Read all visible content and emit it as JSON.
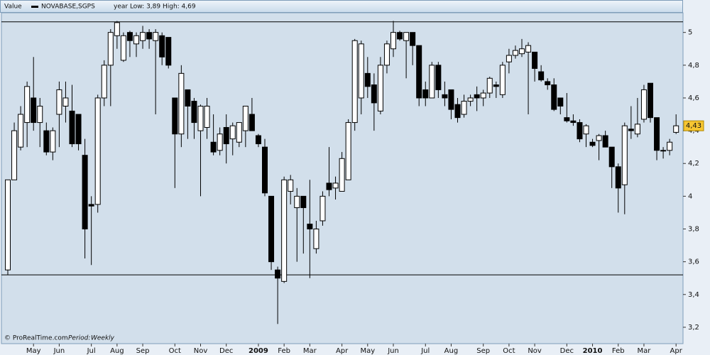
{
  "chart_data": {
    "type": "candlestick",
    "header": "Value",
    "legend_text": "year Low: 3,89 High: 4,69",
    "footer": "© ProRealTime.com",
    "period_label": "Period:",
    "period": "Weekly",
    "categories": [
      null,
      null,
      null,
      null,
      "May",
      null,
      null,
      null,
      "Jun",
      null,
      null,
      null,
      null,
      "Jul",
      null,
      null,
      null,
      "Aug",
      null,
      null,
      null,
      "Sep",
      null,
      null,
      null,
      null,
      "Oct",
      null,
      null,
      null,
      "Nov",
      null,
      null,
      null,
      "Dec",
      null,
      null,
      null,
      null,
      "2009",
      null,
      null,
      null,
      "Feb",
      null,
      null,
      null,
      "Mar",
      null,
      null,
      null,
      null,
      "Apr",
      null,
      null,
      null,
      "May",
      null,
      null,
      null,
      "Jun",
      null,
      null,
      null,
      null,
      "Jul",
      null,
      null,
      null,
      "Aug",
      null,
      null,
      null,
      null,
      "Sep",
      null,
      null,
      null,
      "Oct",
      null,
      null,
      null,
      "Nov",
      null,
      null,
      null,
      null,
      "Dec",
      null,
      null,
      null,
      "2010",
      null,
      null,
      null,
      "Feb",
      null,
      null,
      null,
      "Mar",
      null,
      null,
      null,
      null,
      "Apr"
    ],
    "series": [
      {
        "name": "NOVABASE,SGPS",
        "up_color": "#ffffff",
        "down_color": "#000000",
        "open": [
          3.55,
          4.1,
          4.3,
          4.45,
          4.6,
          4.45,
          4.4,
          4.27,
          4.5,
          4.55,
          4.52,
          4.5,
          4.25,
          3.95,
          3.95,
          4.6,
          4.8,
          4.98,
          4.83,
          5.0,
          4.93,
          4.95,
          5.0,
          4.95,
          4.98,
          4.97,
          4.6,
          4.38,
          4.65,
          4.58,
          4.4,
          4.42,
          4.33,
          4.28,
          4.42,
          4.35,
          4.33,
          4.4,
          4.5,
          4.37,
          4.3,
          4.0,
          3.55,
          3.48,
          4.03,
          3.93,
          4.0,
          3.83,
          3.68,
          3.85,
          4.08,
          4.05,
          4.03,
          4.1,
          4.45,
          4.6,
          4.75,
          4.68,
          4.52,
          4.8,
          4.9,
          5.0,
          4.95,
          5.0,
          4.92,
          4.65,
          4.6,
          4.8,
          4.62,
          4.65,
          4.56,
          4.5,
          4.58,
          4.62,
          4.6,
          4.63,
          4.68,
          4.62,
          4.82,
          4.86,
          4.87,
          4.88,
          4.88,
          4.76,
          4.7,
          4.68,
          4.6,
          4.48,
          4.46,
          4.45,
          4.38,
          4.33,
          4.34,
          4.37,
          4.3,
          4.18,
          4.07,
          4.41,
          4.38,
          4.47,
          4.69,
          4.48,
          4.28,
          4.28,
          4.39
        ],
        "high": [
          4.1,
          4.45,
          4.55,
          4.7,
          4.85,
          4.6,
          4.45,
          4.42,
          4.7,
          4.7,
          4.68,
          4.5,
          4.35,
          4.0,
          4.62,
          4.83,
          5.02,
          5.07,
          5.0,
          5.01,
          5.0,
          5.04,
          5.02,
          5.02,
          5.0,
          4.97,
          4.6,
          4.8,
          4.65,
          4.6,
          4.56,
          4.6,
          4.5,
          4.42,
          4.5,
          4.45,
          4.45,
          4.55,
          4.6,
          4.38,
          4.35,
          4.0,
          3.57,
          4.12,
          4.13,
          4.05,
          4.0,
          4.1,
          3.85,
          4.03,
          4.3,
          4.12,
          4.27,
          4.47,
          4.96,
          4.95,
          4.85,
          4.75,
          4.85,
          4.95,
          5.07,
          5.01,
          5.0,
          5.0,
          4.92,
          4.7,
          4.82,
          4.82,
          4.7,
          4.65,
          4.6,
          4.62,
          4.62,
          4.67,
          4.65,
          4.73,
          4.7,
          4.82,
          4.9,
          4.92,
          4.96,
          4.94,
          4.88,
          4.8,
          4.72,
          4.72,
          4.6,
          4.63,
          4.5,
          4.47,
          4.44,
          4.35,
          4.38,
          4.4,
          4.3,
          4.2,
          4.45,
          4.55,
          4.6,
          4.68,
          4.69,
          4.48,
          4.3,
          4.35,
          4.5
        ],
        "low": [
          3.52,
          4.1,
          4.28,
          4.3,
          4.4,
          4.3,
          4.25,
          4.22,
          4.3,
          4.45,
          4.3,
          4.28,
          3.62,
          3.58,
          3.9,
          4.55,
          4.55,
          4.9,
          4.82,
          4.85,
          4.85,
          4.9,
          4.9,
          4.5,
          4.8,
          4.78,
          4.05,
          4.3,
          4.35,
          4.35,
          4.0,
          4.35,
          4.25,
          4.25,
          4.2,
          4.25,
          4.3,
          4.3,
          4.4,
          4.3,
          4.0,
          3.55,
          3.22,
          3.47,
          3.95,
          3.6,
          3.65,
          3.5,
          3.65,
          3.82,
          4.0,
          3.98,
          4.03,
          4.1,
          4.4,
          4.5,
          4.6,
          4.4,
          4.5,
          4.75,
          4.85,
          4.95,
          4.72,
          4.8,
          4.55,
          4.55,
          4.6,
          4.6,
          4.55,
          4.47,
          4.45,
          4.48,
          4.55,
          4.52,
          4.55,
          4.6,
          4.6,
          4.6,
          4.75,
          4.84,
          4.85,
          4.5,
          4.7,
          4.7,
          4.65,
          4.52,
          4.5,
          4.45,
          4.43,
          4.33,
          4.3,
          4.3,
          4.22,
          4.3,
          4.05,
          3.9,
          3.89,
          4.35,
          4.36,
          4.45,
          4.45,
          4.22,
          4.23,
          4.25,
          4.38
        ],
        "close": [
          4.1,
          4.4,
          4.5,
          4.67,
          4.45,
          4.55,
          4.27,
          4.4,
          4.65,
          4.6,
          4.32,
          4.32,
          3.8,
          3.94,
          4.6,
          4.8,
          5.0,
          5.06,
          4.98,
          4.95,
          4.98,
          5.0,
          4.96,
          5.0,
          4.85,
          4.8,
          4.38,
          4.75,
          4.55,
          4.45,
          4.55,
          4.55,
          4.27,
          4.38,
          4.32,
          4.43,
          4.45,
          4.55,
          4.4,
          4.32,
          4.02,
          3.6,
          3.5,
          4.1,
          4.1,
          4.0,
          3.93,
          3.8,
          3.8,
          4.0,
          4.04,
          4.08,
          4.23,
          4.45,
          4.95,
          4.93,
          4.67,
          4.57,
          4.8,
          4.93,
          5.0,
          4.96,
          5.0,
          4.92,
          4.6,
          4.6,
          4.8,
          4.65,
          4.6,
          4.53,
          4.48,
          4.58,
          4.6,
          4.6,
          4.63,
          4.72,
          4.67,
          4.8,
          4.86,
          4.89,
          4.9,
          4.92,
          4.78,
          4.71,
          4.68,
          4.53,
          4.55,
          4.46,
          4.45,
          4.35,
          4.43,
          4.31,
          4.37,
          4.3,
          4.18,
          4.05,
          4.43,
          4.4,
          4.44,
          4.65,
          4.48,
          4.28,
          4.28,
          4.33,
          4.43
        ]
      }
    ],
    "last_price": {
      "value": 4.43,
      "label": "4,43"
    },
    "hlines": [
      5.065,
      3.52
    ],
    "ylim": [
      3.1,
      5.12
    ],
    "yticks": [
      {
        "value": 3.2,
        "label": "3,2"
      },
      {
        "value": 3.4,
        "label": "3,4"
      },
      {
        "value": 3.6,
        "label": "3,6"
      },
      {
        "value": 3.8,
        "label": "3,8"
      },
      4,
      {
        "value": 4.2,
        "label": "4,2"
      },
      {
        "value": 4.4,
        "label": "4,4"
      },
      {
        "value": 4.6,
        "label": "4,6"
      },
      {
        "value": 4.8,
        "label": "4,8"
      },
      5
    ]
  }
}
